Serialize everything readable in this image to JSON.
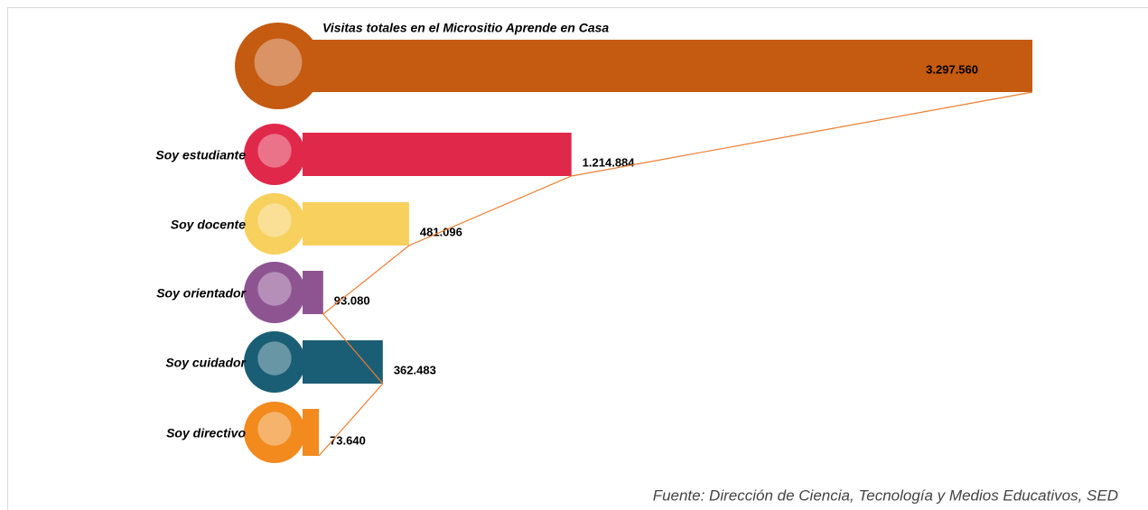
{
  "chart_data": {
    "type": "bar",
    "orientation": "horizontal",
    "title": "Visitas totales en el Micrositio Aprende en Casa",
    "categories": [
      null,
      "Soy estudiante",
      "Soy docente",
      "Soy orientador",
      "Soy cuidador",
      "Soy directivo"
    ],
    "values": [
      3297560,
      1214884,
      481096,
      93080,
      362483,
      73640
    ],
    "value_labels": [
      "3.297.560",
      "1.214.884",
      "481.096",
      "93.080",
      "362.483",
      "73.640"
    ],
    "colors": [
      "#c55a11",
      "#e0284a",
      "#f7d05e",
      "#8e5492",
      "#1a5e75",
      "#f28a1e"
    ],
    "trend_line_color": "#ed7d31",
    "source": "Fuente: Dirección de Ciencia, Tecnología y Medios Educativos, SED"
  }
}
